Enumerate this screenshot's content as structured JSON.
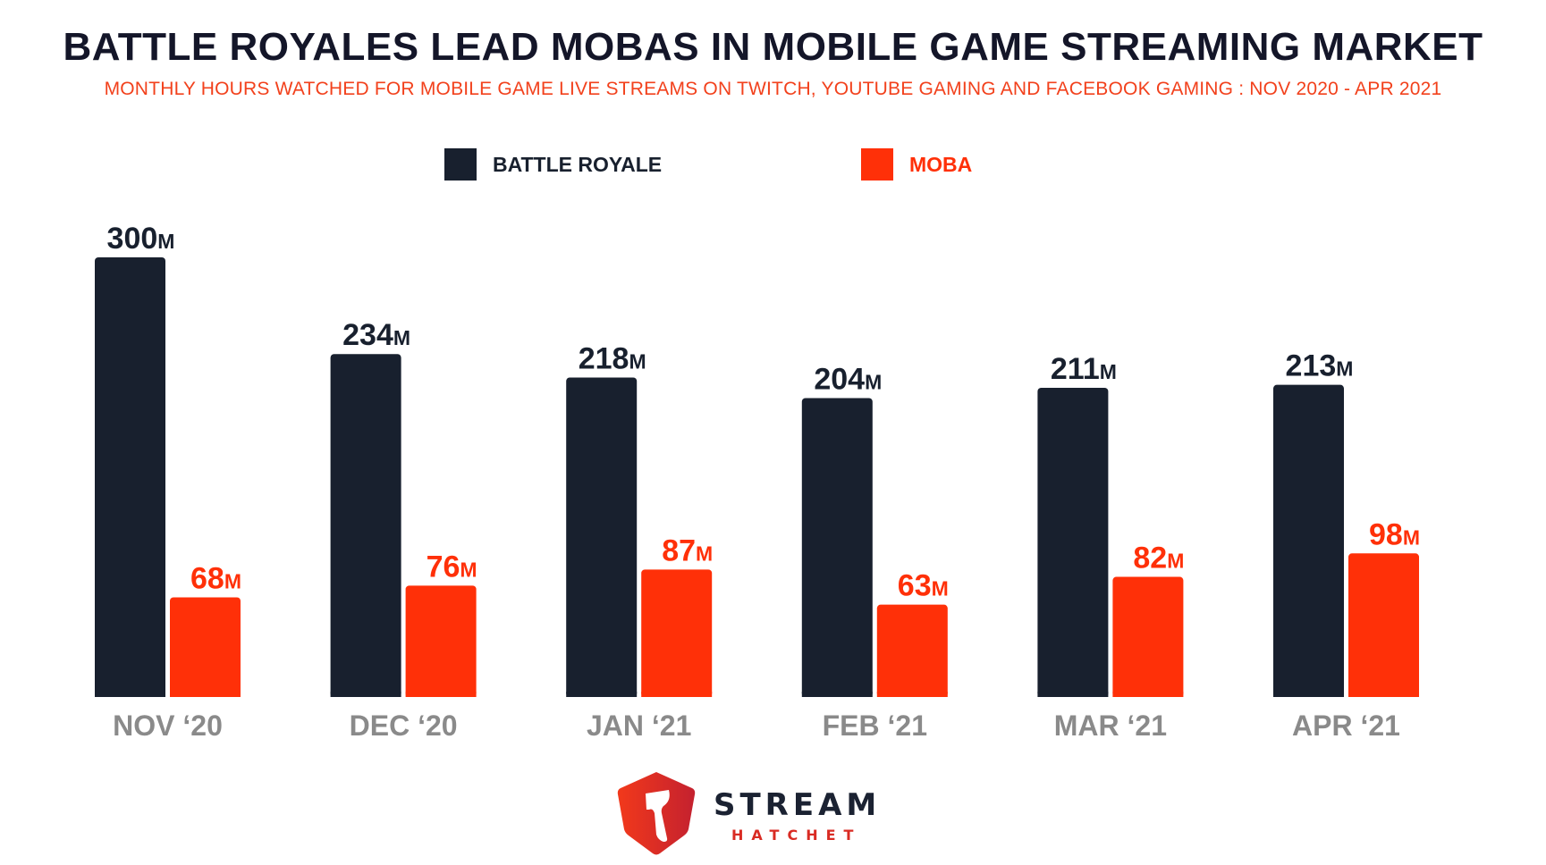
{
  "chart_data": {
    "type": "bar",
    "title": "BATTLE ROYALES LEAD MOBAS IN MOBILE GAME STREAMING MARKET",
    "subtitle": "MONTHLY HOURS WATCHED FOR MOBILE GAME LIVE STREAMS ON TWITCH, YOUTUBE GAMING AND FACEBOOK GAMING : NOV 2020 - APR 2021",
    "categories": [
      "NOV ‘20",
      "DEC ‘20",
      "JAN ‘21",
      "FEB ‘21",
      "MAR ‘21",
      "APR ‘21"
    ],
    "series": [
      {
        "name": "BATTLE ROYALE",
        "color": "#18202e",
        "values": [
          300,
          234,
          218,
          204,
          211,
          213
        ],
        "labels": [
          "300",
          "234",
          "218",
          "204",
          "211",
          "213"
        ]
      },
      {
        "name": "MOBA",
        "color": "#ff3008",
        "values": [
          68,
          76,
          87,
          63,
          82,
          98
        ],
        "labels": [
          "68",
          "76",
          "87",
          "63",
          "82",
          "98"
        ]
      }
    ],
    "value_suffix": "M",
    "xlabel": "",
    "ylabel": "",
    "ylim": [
      0,
      300
    ],
    "grid": false,
    "legend_position": "top-center"
  },
  "legend": {
    "items": [
      {
        "label": "BATTLE ROYALE",
        "color": "#18202e"
      },
      {
        "label": "MOBA",
        "color": "#ff3008"
      }
    ]
  },
  "brand": {
    "name_top": "STREAM",
    "name_bottom": "HATCHET",
    "logo_icon": "hatchet-shield-icon"
  },
  "colors": {
    "title": "#141629",
    "subtitle": "#f2411c",
    "category": "#8a8a8a"
  }
}
